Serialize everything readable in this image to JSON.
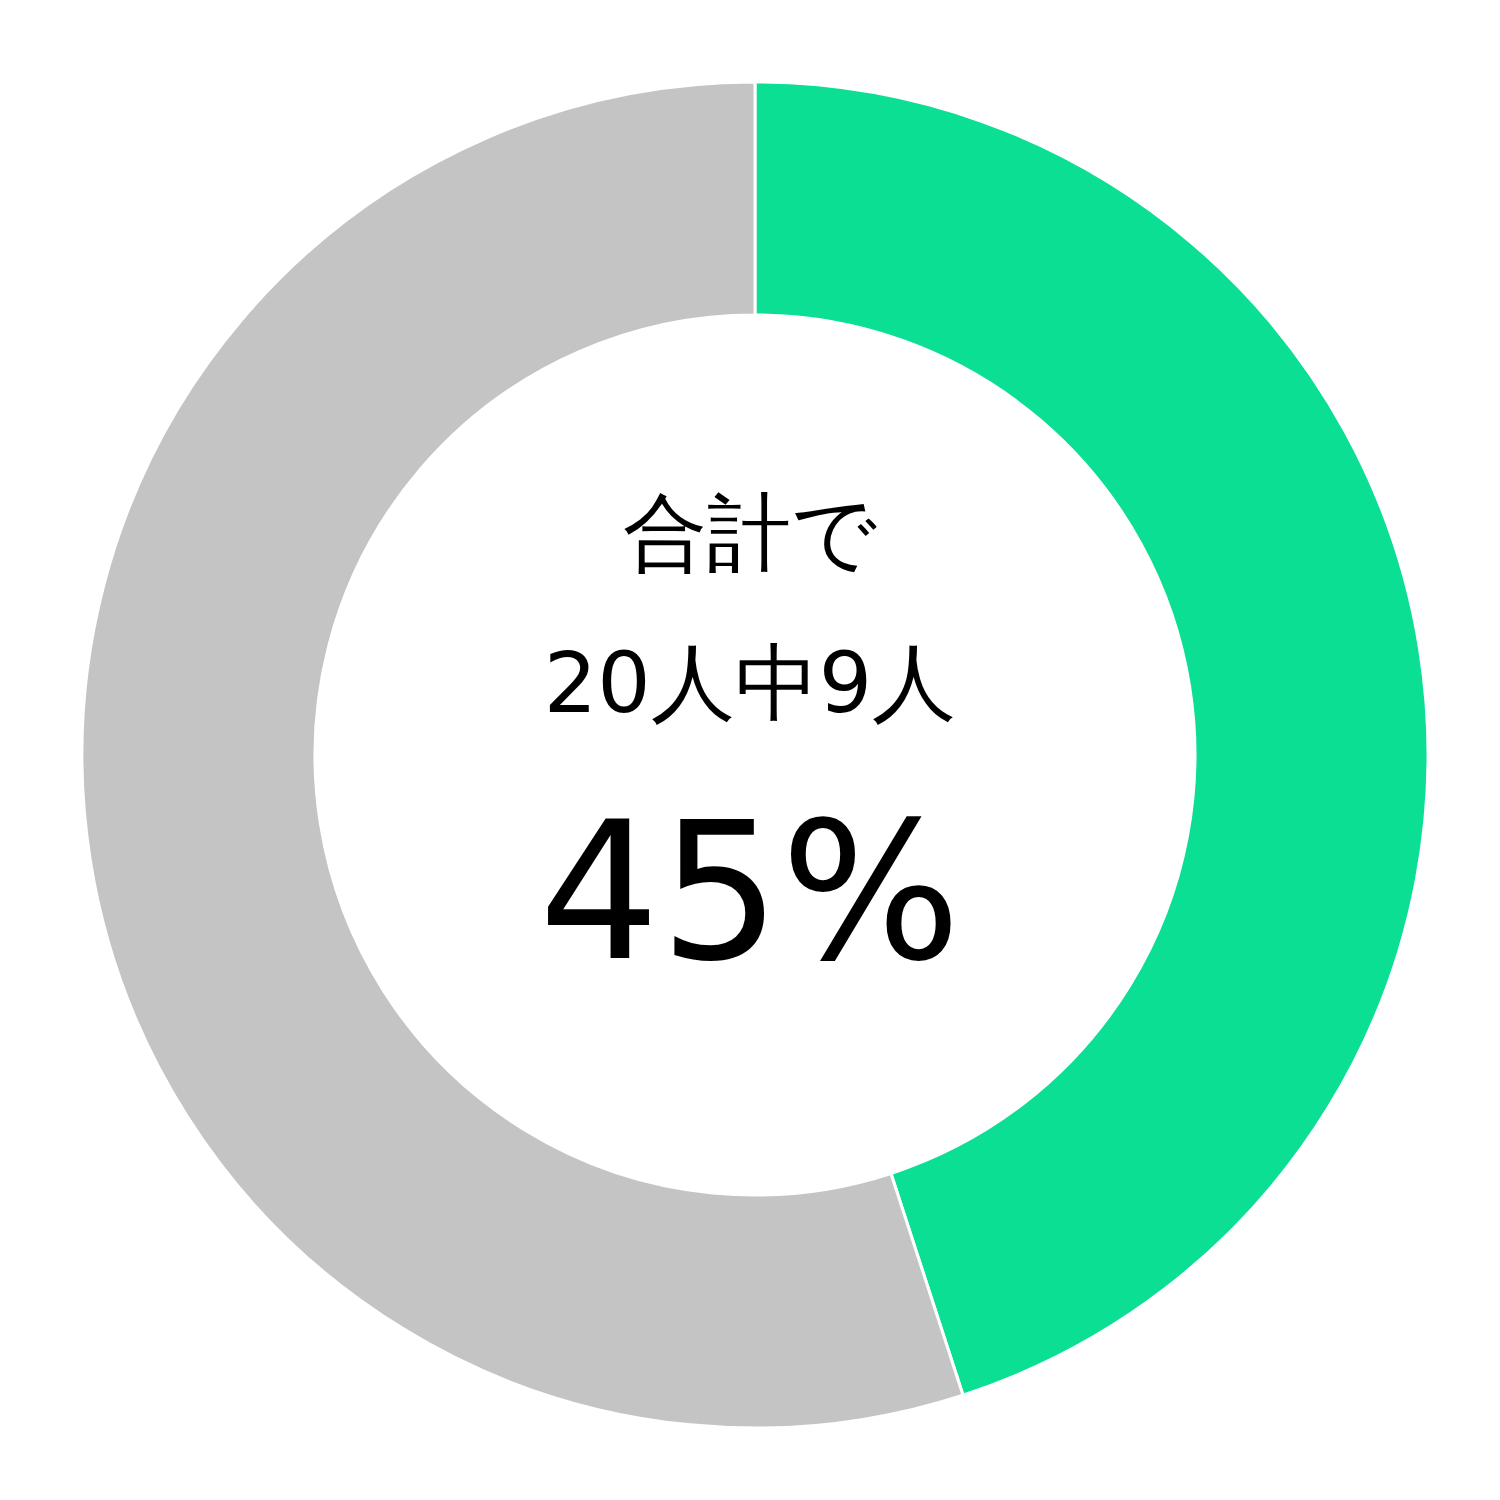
{
  "chart_data": {
    "type": "donut",
    "categories": [
      null,
      null
    ],
    "values": [
      45,
      55
    ],
    "colors": [
      "#0adf94",
      "#c4c4c4"
    ],
    "annotations": [
      "合計で",
      "20人中9人",
      "45%"
    ]
  }
}
